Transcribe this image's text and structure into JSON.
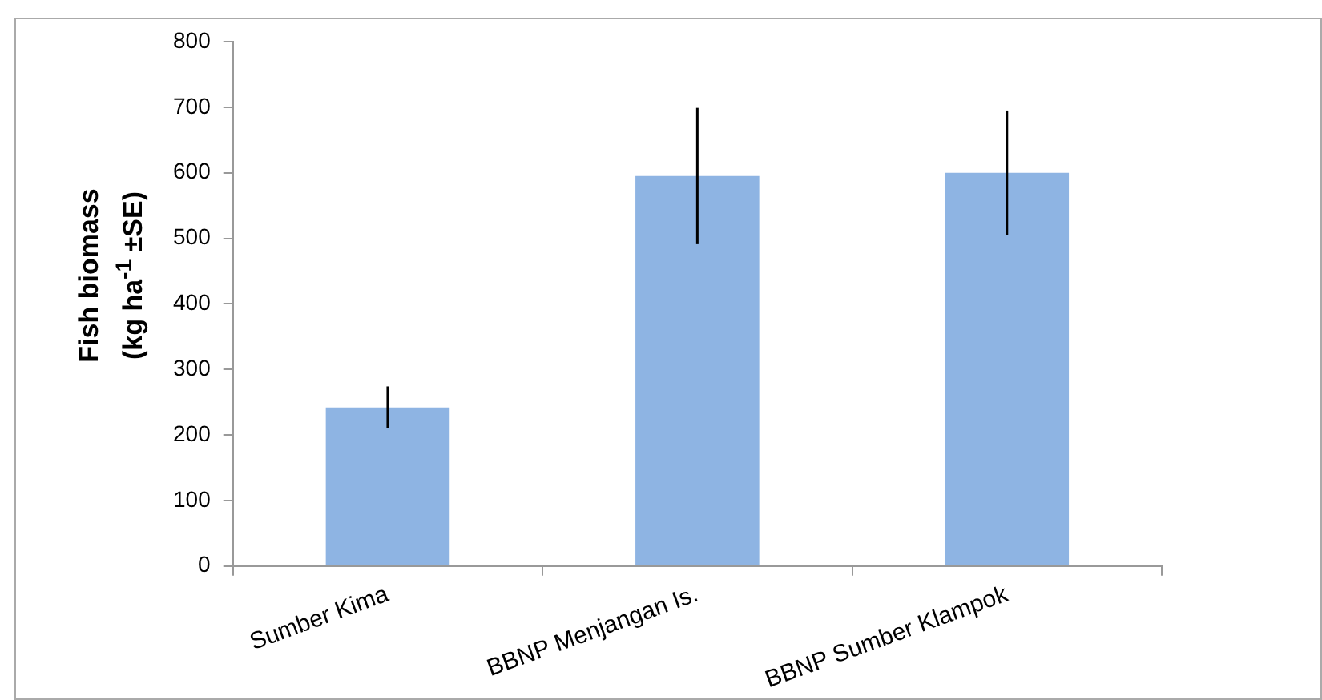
{
  "chart_data": {
    "type": "bar",
    "ylabel": "Fish biomass\n(kg ha$^{-1}$ ±SE)",
    "categories": [
      "Sumber Kima",
      "BBNP Menjangan Is.",
      "BBNP Sumber Klampok"
    ],
    "values": [
      242,
      595,
      600
    ],
    "errors": [
      32,
      104,
      95
    ],
    "color": "#8eb4e3",
    "ylim": [
      0,
      800
    ],
    "yticks": [
      0,
      100,
      200,
      300,
      400,
      500,
      600,
      700,
      800
    ],
    "grid": false,
    "legend": false
  }
}
